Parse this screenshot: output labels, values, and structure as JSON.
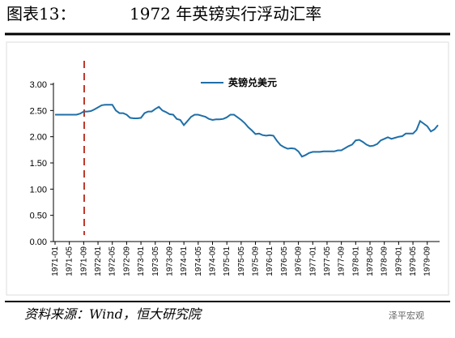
{
  "header": {
    "label": "图表13：",
    "title": "1972 年英镑实行浮动汇率"
  },
  "chart_data": {
    "type": "line",
    "categories": [
      "1971-01",
      null,
      null,
      null,
      "1971-05",
      null,
      null,
      null,
      "1971-09",
      null,
      null,
      null,
      "1972-01",
      null,
      null,
      null,
      "1972-05",
      null,
      null,
      null,
      "1972-09",
      null,
      null,
      null,
      "1973-01",
      null,
      null,
      null,
      "1973-05",
      null,
      null,
      null,
      "1973-09",
      null,
      null,
      null,
      "1974-01",
      null,
      null,
      null,
      "1974-05",
      null,
      null,
      null,
      "1974-09",
      null,
      null,
      null,
      "1975-01",
      null,
      null,
      null,
      "1975-05",
      null,
      null,
      null,
      "1975-09",
      null,
      null,
      null,
      "1976-01",
      null,
      null,
      null,
      "1976-05",
      null,
      null,
      null,
      "1976-09",
      null,
      null,
      null,
      "1977-01",
      null,
      null,
      null,
      "1977-05",
      null,
      null,
      null,
      "1977-09",
      null,
      null,
      null,
      "1978-01",
      null,
      null,
      null,
      "1978-05",
      null,
      null,
      null,
      "1978-09",
      null,
      null,
      null,
      "1979-01",
      null,
      null,
      null,
      "1979-05",
      null,
      null,
      null,
      "1979-09",
      null,
      null,
      null
    ],
    "series": [
      {
        "name": "英镑兑美元",
        "color": "#1f6fa8",
        "values": [
          2.42,
          2.42,
          2.42,
          2.42,
          2.42,
          2.42,
          2.42,
          2.44,
          2.48,
          2.48,
          2.49,
          2.52,
          2.56,
          2.6,
          2.61,
          2.61,
          2.61,
          2.5,
          2.45,
          2.45,
          2.42,
          2.36,
          2.35,
          2.35,
          2.36,
          2.45,
          2.48,
          2.48,
          2.53,
          2.57,
          2.5,
          2.47,
          2.43,
          2.42,
          2.34,
          2.32,
          2.22,
          2.3,
          2.38,
          2.42,
          2.42,
          2.4,
          2.38,
          2.34,
          2.32,
          2.33,
          2.33,
          2.34,
          2.37,
          2.42,
          2.42,
          2.37,
          2.32,
          2.26,
          2.18,
          2.12,
          2.05,
          2.06,
          2.03,
          2.02,
          2.03,
          2.02,
          1.92,
          1.84,
          1.8,
          1.77,
          1.78,
          1.77,
          1.72,
          1.62,
          1.65,
          1.69,
          1.71,
          1.71,
          1.71,
          1.72,
          1.72,
          1.72,
          1.72,
          1.74,
          1.74,
          1.78,
          1.82,
          1.85,
          1.93,
          1.94,
          1.9,
          1.85,
          1.82,
          1.83,
          1.86,
          1.93,
          1.96,
          1.99,
          1.96,
          1.98,
          2.0,
          2.01,
          2.06,
          2.06,
          2.06,
          2.13,
          2.3,
          2.25,
          2.2,
          2.1,
          2.14,
          2.22
        ]
      }
    ],
    "ylim": [
      0,
      3
    ],
    "yticks": [
      {
        "value": 0,
        "label": "0.00"
      },
      {
        "value": 0.5,
        "label": "0.50"
      },
      {
        "value": 1,
        "label": "1.00"
      },
      {
        "value": 1.5,
        "label": "1.50"
      },
      {
        "value": 2,
        "label": "2.00"
      },
      {
        "value": 2.5,
        "label": "2.50"
      },
      {
        "value": 3,
        "label": "3.00"
      }
    ],
    "grid": false
  },
  "footer": {
    "source": "资料来源：Wind，恒大研究院",
    "watermark": "泽平宏观"
  }
}
